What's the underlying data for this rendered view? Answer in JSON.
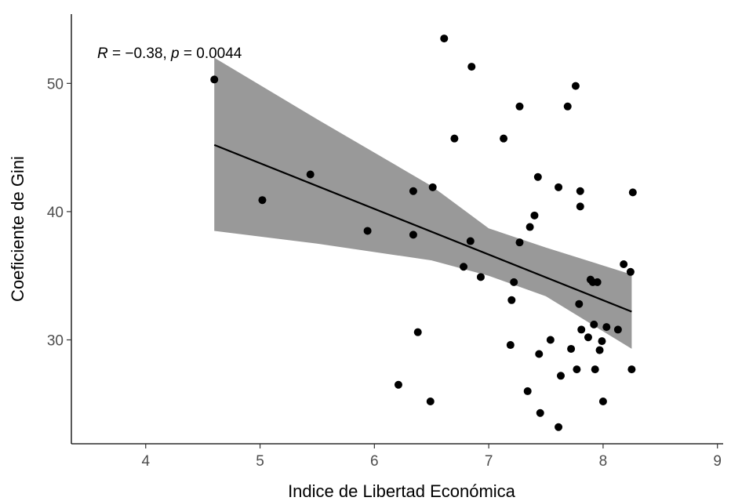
{
  "chart_data": {
    "type": "scatter",
    "xlabel": "Indice de Libertad Económica",
    "ylabel": "Coeficiente de Gini",
    "xlim": [
      3.35,
      9.05
    ],
    "ylim": [
      21.9,
      55.4
    ],
    "x_ticks": [
      "4",
      "5",
      "6",
      "7",
      "8",
      "9"
    ],
    "y_ticks": [
      "30",
      "40",
      "50"
    ],
    "grid": false,
    "annotation": {
      "r_symbol": "R",
      "r_text": " = −0.38, ",
      "p_symbol": "p",
      "p_text": " = 0.0044"
    },
    "regression": {
      "x": [
        4.6,
        8.25
      ],
      "y": [
        45.2,
        32.2
      ],
      "ci_x": [
        4.6,
        5.5,
        6.5,
        7.0,
        7.5,
        8.25
      ],
      "ci_lower": [
        38.5,
        37.5,
        36.2,
        35.0,
        33.4,
        29.3
      ],
      "ci_upper": [
        52.0,
        47.2,
        42.0,
        38.7,
        37.2,
        35.1
      ]
    },
    "points": [
      [
        4.6,
        50.3
      ],
      [
        5.02,
        40.9
      ],
      [
        5.44,
        42.9
      ],
      [
        5.94,
        38.5
      ],
      [
        6.21,
        26.5
      ],
      [
        6.34,
        41.6
      ],
      [
        6.34,
        38.2
      ],
      [
        6.38,
        30.6
      ],
      [
        6.49,
        25.2
      ],
      [
        6.51,
        41.9
      ],
      [
        6.61,
        53.5
      ],
      [
        6.7,
        45.7
      ],
      [
        6.78,
        35.7
      ],
      [
        6.84,
        37.7
      ],
      [
        6.85,
        51.3
      ],
      [
        6.93,
        34.9
      ],
      [
        7.13,
        45.7
      ],
      [
        7.19,
        29.6
      ],
      [
        7.2,
        33.1
      ],
      [
        7.22,
        34.5
      ],
      [
        7.27,
        37.6
      ],
      [
        7.27,
        48.2
      ],
      [
        7.34,
        26.0
      ],
      [
        7.36,
        38.8
      ],
      [
        7.4,
        39.7
      ],
      [
        7.43,
        42.7
      ],
      [
        7.44,
        28.9
      ],
      [
        7.45,
        24.3
      ],
      [
        7.54,
        30.0
      ],
      [
        7.61,
        41.9
      ],
      [
        7.61,
        23.2
      ],
      [
        7.63,
        27.2
      ],
      [
        7.69,
        48.2
      ],
      [
        7.72,
        29.3
      ],
      [
        7.76,
        49.8
      ],
      [
        7.77,
        27.7
      ],
      [
        7.79,
        32.8
      ],
      [
        7.8,
        41.6
      ],
      [
        7.8,
        40.4
      ],
      [
        7.81,
        30.8
      ],
      [
        7.87,
        30.2
      ],
      [
        7.89,
        34.7
      ],
      [
        7.91,
        34.5
      ],
      [
        7.92,
        31.2
      ],
      [
        7.93,
        27.7
      ],
      [
        7.95,
        34.5
      ],
      [
        7.97,
        29.2
      ],
      [
        7.99,
        29.9
      ],
      [
        8.0,
        25.2
      ],
      [
        8.03,
        31.0
      ],
      [
        8.13,
        30.8
      ],
      [
        8.18,
        35.9
      ],
      [
        8.24,
        35.3
      ],
      [
        8.25,
        27.7
      ],
      [
        8.26,
        41.5
      ]
    ]
  }
}
